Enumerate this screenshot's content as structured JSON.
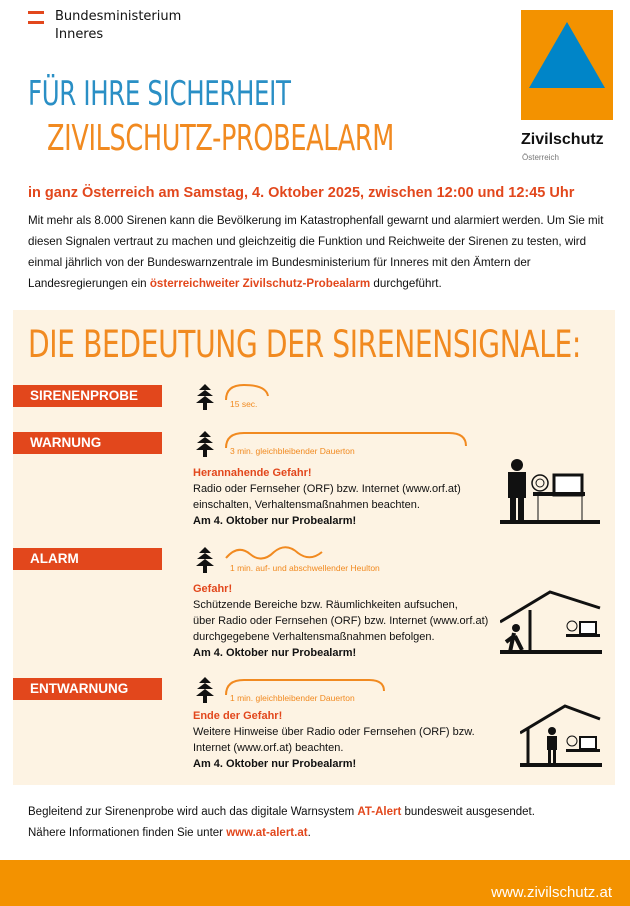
{
  "header": {
    "ministry_line1": "Bundesministerium",
    "ministry_line2": "Inneres",
    "logo_name": "Zivilschutz",
    "logo_sub": "Österreich"
  },
  "title": {
    "line1": "FÜR IHRE SICHERHEIT",
    "line2": "ZIVILSCHUTZ-PROBEALARM"
  },
  "date_line": "in ganz Österreich am Samstag, 4. Oktober 2025, zwischen 12:00 und 12:45 Uhr",
  "intro": {
    "text": "Mit mehr als 8.000 Sirenen kann die Bevölkerung im Katastrophenfall gewarnt und alarmiert werden. Um Sie mit diesen Signalen vertraut zu machen und gleichzeitig die Funktion und Reichweite der Sirenen zu testen, wird einmal jährlich von der Bundeswarnzentrale im Bundesministerium für Inneres mit den Ämtern der Landesregierungen ein ",
    "highlight": "österreichweiter Zivilschutz-Probealarm",
    "end": " durchgeführt."
  },
  "signals_title": "DIE BEDEUTUNG DER SIRENENSIGNALE:",
  "signals": [
    {
      "label": "SIRENENPROBE",
      "tone": "15 sec."
    },
    {
      "label": "WARNUNG",
      "tone": "3 min. gleichbleibender Dauerton",
      "heading": "Herannahende Gefahr!",
      "lines": [
        "Radio oder Fernseher (ORF) bzw. Internet (www.orf.at)",
        "einschalten, Verhaltensmaßnahmen beachten."
      ],
      "note": "Am 4. Oktober nur Probealarm!"
    },
    {
      "label": "ALARM",
      "tone": "1 min. auf- und abschwellender Heulton",
      "heading": "Gefahr!",
      "lines": [
        "Schützende Bereiche bzw. Räumlichkeiten aufsuchen,",
        "über Radio oder Fernsehen (ORF) bzw. Internet (www.orf.at)",
        "durchgegebene Verhaltensmaßnahmen befolgen."
      ],
      "note": "Am 4. Oktober nur Probealarm!"
    },
    {
      "label": "ENTWARNUNG",
      "tone": "1 min. gleichbleibender Dauerton",
      "heading": "Ende der Gefahr!",
      "lines": [
        "Weitere Hinweise über Radio oder Fernsehen (ORF) bzw.",
        "Internet (www.orf.at) beachten."
      ],
      "note": "Am 4. Oktober nur Probealarm!"
    }
  ],
  "bottom": {
    "line1_a": "Begleitend zur Sirenenprobe wird auch das digitale Warnsystem ",
    "line1_hl": "AT-Alert",
    "line1_b": " bundesweit ausgesendet.",
    "line2_a": "Nähere Informationen finden Sie unter ",
    "line2_link": "www.at-alert.at",
    "line2_b": "."
  },
  "footer": {
    "url": "www.zivilschutz.at"
  },
  "colors": {
    "orange": "#f39200",
    "red": "#e2471c",
    "blue": "#0085c8",
    "cream": "#fdf3e3"
  }
}
